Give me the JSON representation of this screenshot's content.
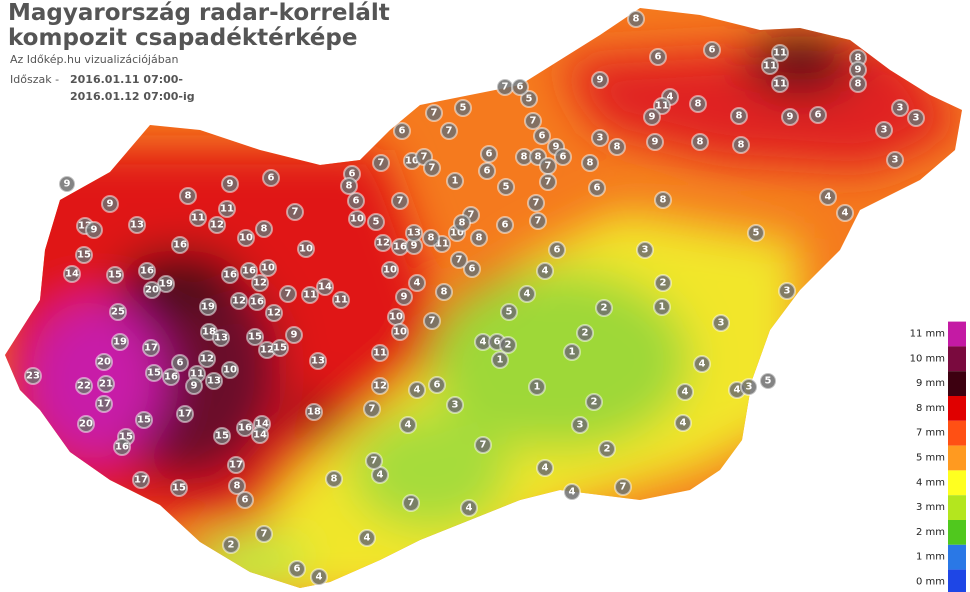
{
  "header": {
    "title_line1": "Magyarország radar-korrelált",
    "title_line2": "kompozit csapadéktérképe",
    "subtitle": "Az Időkép.hu vizualizációjában",
    "period_label": "Időszak -",
    "period_start": "2016.01.11 07:00-",
    "period_end": "2016.01.12 07:00-ig"
  },
  "legend": {
    "labels": [
      "11 mm",
      "10 mm",
      "9 mm",
      "8 mm",
      "7 mm",
      "5 mm",
      "4 mm",
      "3 mm",
      "2 mm",
      "1 mm",
      "0 mm"
    ],
    "colors": [
      "#c41aa4",
      "#7a0a3e",
      "#3d0010",
      "#e00000",
      "#ff5014",
      "#ff9a20",
      "#ffff20",
      "#b4e61e",
      "#50c81e",
      "#2a78e6",
      "#1e46e6"
    ]
  },
  "stations": [
    8,
    6,
    11,
    8,
    11,
    9,
    8,
    11,
    9,
    5,
    7,
    6,
    4,
    6,
    11,
    9,
    8,
    8,
    9,
    6,
    3,
    3,
    3,
    3,
    7,
    5,
    6,
    7,
    7,
    6,
    9,
    3,
    8,
    9,
    8,
    8,
    8,
    8,
    6,
    8,
    7,
    6,
    7,
    10,
    7,
    7,
    6,
    1,
    5,
    6,
    7,
    8,
    4,
    4,
    5,
    9,
    9,
    6,
    8,
    9,
    11,
    12,
    9,
    13,
    11,
    12,
    7,
    8,
    10,
    16,
    15,
    15,
    16,
    19,
    20,
    14,
    16,
    16,
    10,
    12,
    7,
    11,
    14,
    11,
    25,
    19,
    12,
    16,
    12,
    18,
    13,
    15,
    12,
    9,
    15,
    19,
    17,
    6,
    12,
    20,
    23,
    22,
    21,
    16,
    15,
    11,
    13,
    10,
    9,
    17,
    15,
    17,
    13,
    11,
    12,
    18,
    20,
    15,
    16,
    15,
    16,
    14,
    14,
    17,
    17,
    15,
    8,
    6,
    2,
    7,
    6,
    4,
    4,
    7,
    4,
    8,
    7,
    4,
    7,
    3,
    4,
    6,
    10,
    10,
    7,
    9,
    4,
    8,
    5,
    4,
    4,
    6,
    2,
    1,
    4,
    6,
    2,
    1,
    2,
    3,
    2,
    1,
    1,
    2,
    3,
    2,
    7,
    4,
    4,
    4,
    7,
    3,
    3,
    4,
    4,
    4,
    3,
    5,
    4,
    10,
    10,
    12,
    16,
    11,
    8,
    10,
    8,
    6,
    7,
    9,
    13,
    10,
    5,
    6,
    6,
    8,
    7,
    7,
    8,
    6,
    7,
    7
  ]
}
